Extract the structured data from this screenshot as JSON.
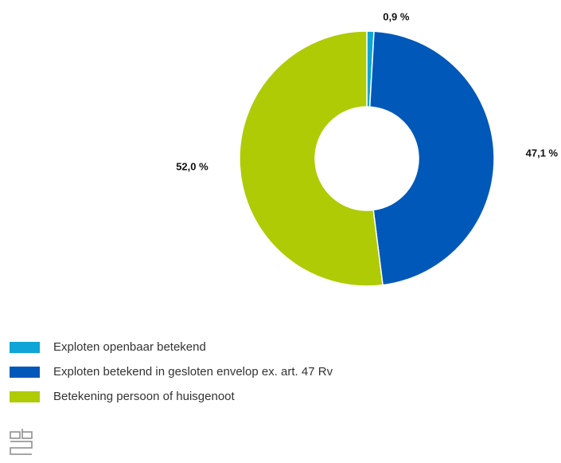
{
  "chart_data": {
    "type": "donut",
    "categories": [
      "Exploten openbaar betekend",
      "Exploten betekend in gesloten envelop ex. art. 47 Rv",
      "Betekening persoon of huisgenoot"
    ],
    "values": [
      0.9,
      47.1,
      52.0
    ],
    "value_labels": [
      "0,9 %",
      "47,1 %",
      "52,0 %"
    ],
    "colors": [
      "#0fa5d6",
      "#0058b8",
      "#afcb05"
    ],
    "legend": "bottom-left"
  }
}
